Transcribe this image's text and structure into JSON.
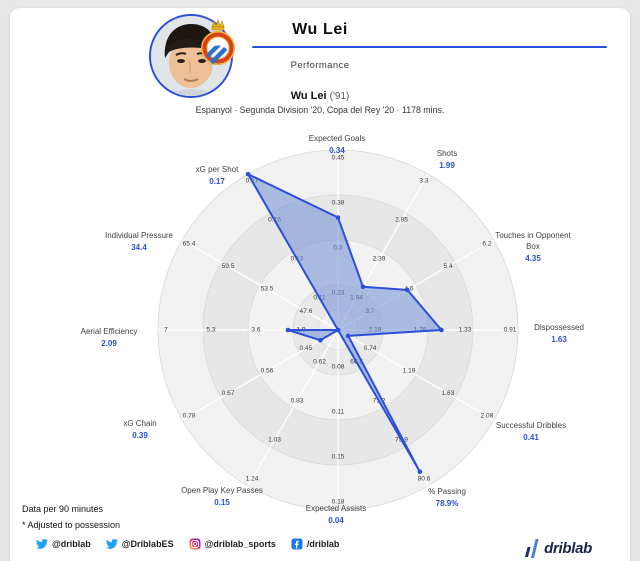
{
  "header": {
    "title": "Wu Lei",
    "subtitle": "Performance"
  },
  "chart": {
    "title": "Wu Lei",
    "title_suffix": "('91)",
    "subtitle": "Espanyol · Segunda Division '20, Copa del Rey '20 · 1178 mins."
  },
  "chart_data": {
    "type": "radar",
    "rings_fractions": [
      0.25,
      0.5,
      0.75,
      1.0
    ],
    "accent": "#2b4fd7",
    "axes": [
      {
        "label_lines": [
          "Expected Goals"
        ],
        "value": "0.34",
        "ticks": [
          "0.23",
          "0.3",
          "0.38",
          "0.45"
        ]
      },
      {
        "label_lines": [
          "Shots"
        ],
        "value": "1.99",
        "ticks": [
          "1.94",
          "2.39",
          "2.85",
          "3.3"
        ]
      },
      {
        "label_lines": [
          "Touches in Opponent",
          "Box"
        ],
        "value": "4.35",
        "ticks": [
          "3.7",
          "4.6",
          "5.4",
          "6.2"
        ]
      },
      {
        "label_lines": [
          "Dispossessed"
        ],
        "value": "1.63",
        "ticks": [
          "2.18",
          "1.76",
          "1.33",
          "0.91"
        ]
      },
      {
        "label_lines": [
          "Successful Dribbles"
        ],
        "value": "0.41",
        "ticks": [
          "0.74",
          "1.19",
          "1.63",
          "2.08"
        ]
      },
      {
        "label_lines": [
          "% Passing"
        ],
        "value": "78.9%",
        "ticks": [
          "66.5",
          "71.2",
          "75.9",
          "80.6"
        ]
      },
      {
        "label_lines": [
          "Expected Assists"
        ],
        "value": "0.04",
        "ticks": [
          "0.08",
          "0.11",
          "0.15",
          "0.18"
        ]
      },
      {
        "label_lines": [
          "Open Play Key Passes"
        ],
        "value": "0.15",
        "ticks": [
          "0.62",
          "0.83",
          "1.03",
          "1.24"
        ]
      },
      {
        "label_lines": [
          "xG Chain"
        ],
        "value": "0.39",
        "ticks": [
          "0.45",
          "0.56",
          "0.67",
          "0.78"
        ]
      },
      {
        "label_lines": [
          "Aerial Efficiency"
        ],
        "value": "2.09",
        "ticks": [
          "1.9",
          "3.6",
          "5.3",
          "7"
        ]
      },
      {
        "label_lines": [
          "Individual Pressure"
        ],
        "value": "34.4",
        "ticks": [
          "47.6",
          "53.5",
          "59.5",
          "65.4"
        ]
      },
      {
        "label_lines": [
          "xG per Shot"
        ],
        "value": "0.17",
        "ticks": [
          "0.11",
          "0.13",
          "0.15",
          "0.17"
        ]
      }
    ]
  },
  "notes": [
    "Data per 90 minutes",
    "* Adjusted to possession"
  ],
  "footer": {
    "socials": [
      {
        "icon": "twitter-icon",
        "text": "@driblab"
      },
      {
        "icon": "twitter-icon",
        "text": "@DriblabES"
      },
      {
        "icon": "instagram-icon",
        "text": "@driblab_sports"
      },
      {
        "icon": "facebook-icon",
        "text": "/driblab"
      }
    ],
    "brand": "driblab"
  }
}
